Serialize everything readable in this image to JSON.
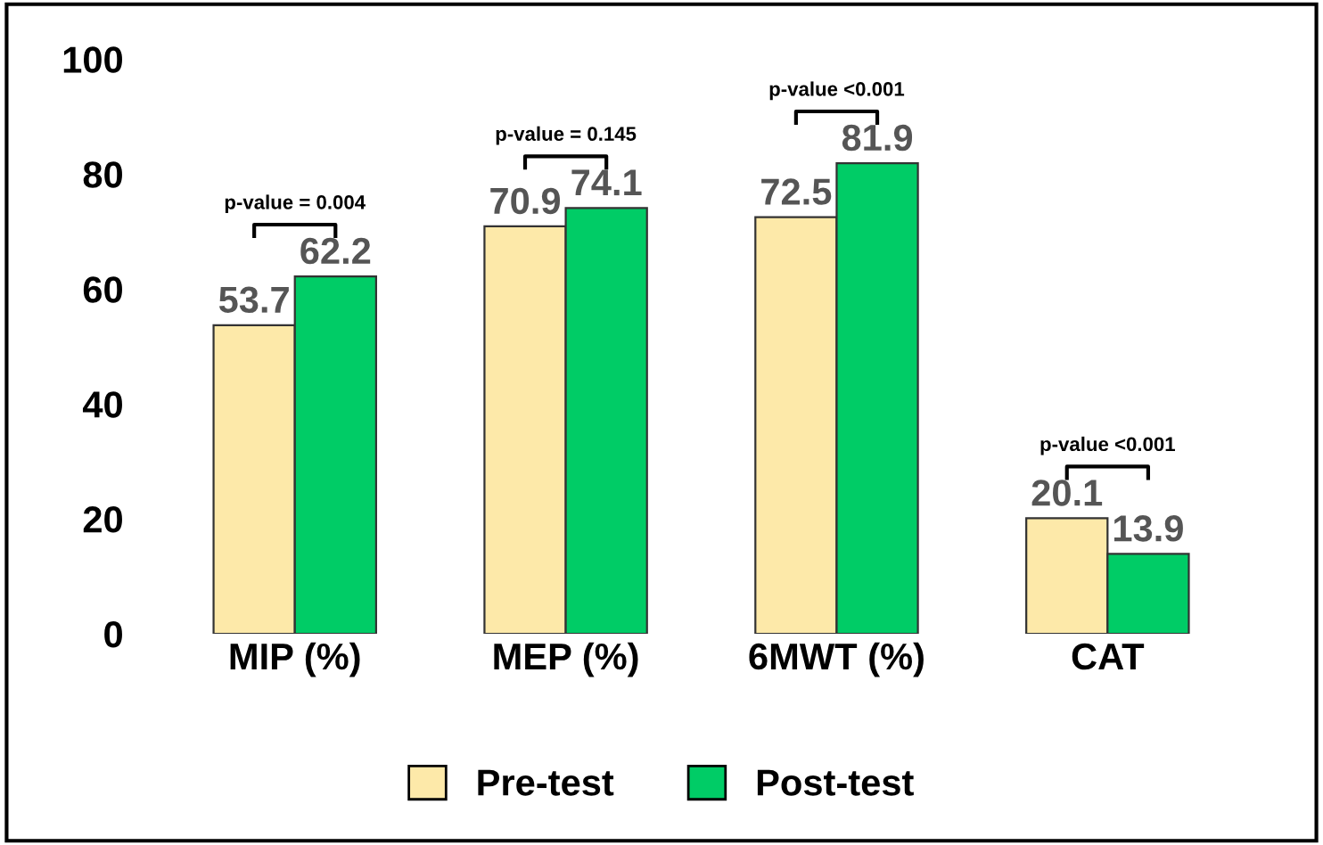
{
  "chart_data": {
    "type": "bar",
    "categories": [
      "MIP (%)",
      "MEP (%)",
      "6MWT (%)",
      "CAT"
    ],
    "series": [
      {
        "name": "Pre-test",
        "color": "#fde9a9",
        "values": [
          53.7,
          70.9,
          72.5,
          20.1
        ]
      },
      {
        "name": "Post-test",
        "color": "#00cc66",
        "values": [
          62.2,
          74.1,
          81.9,
          13.9
        ]
      }
    ],
    "ylim": [
      0,
      100
    ],
    "yticks": [
      0,
      20,
      40,
      60,
      80,
      100
    ],
    "data_labels": true,
    "grid": false,
    "legend": "bottom",
    "annotations": [
      "p-value = 0.004",
      "p-value = 0.145",
      "p-value <0.001",
      "p-value <0.001"
    ]
  }
}
